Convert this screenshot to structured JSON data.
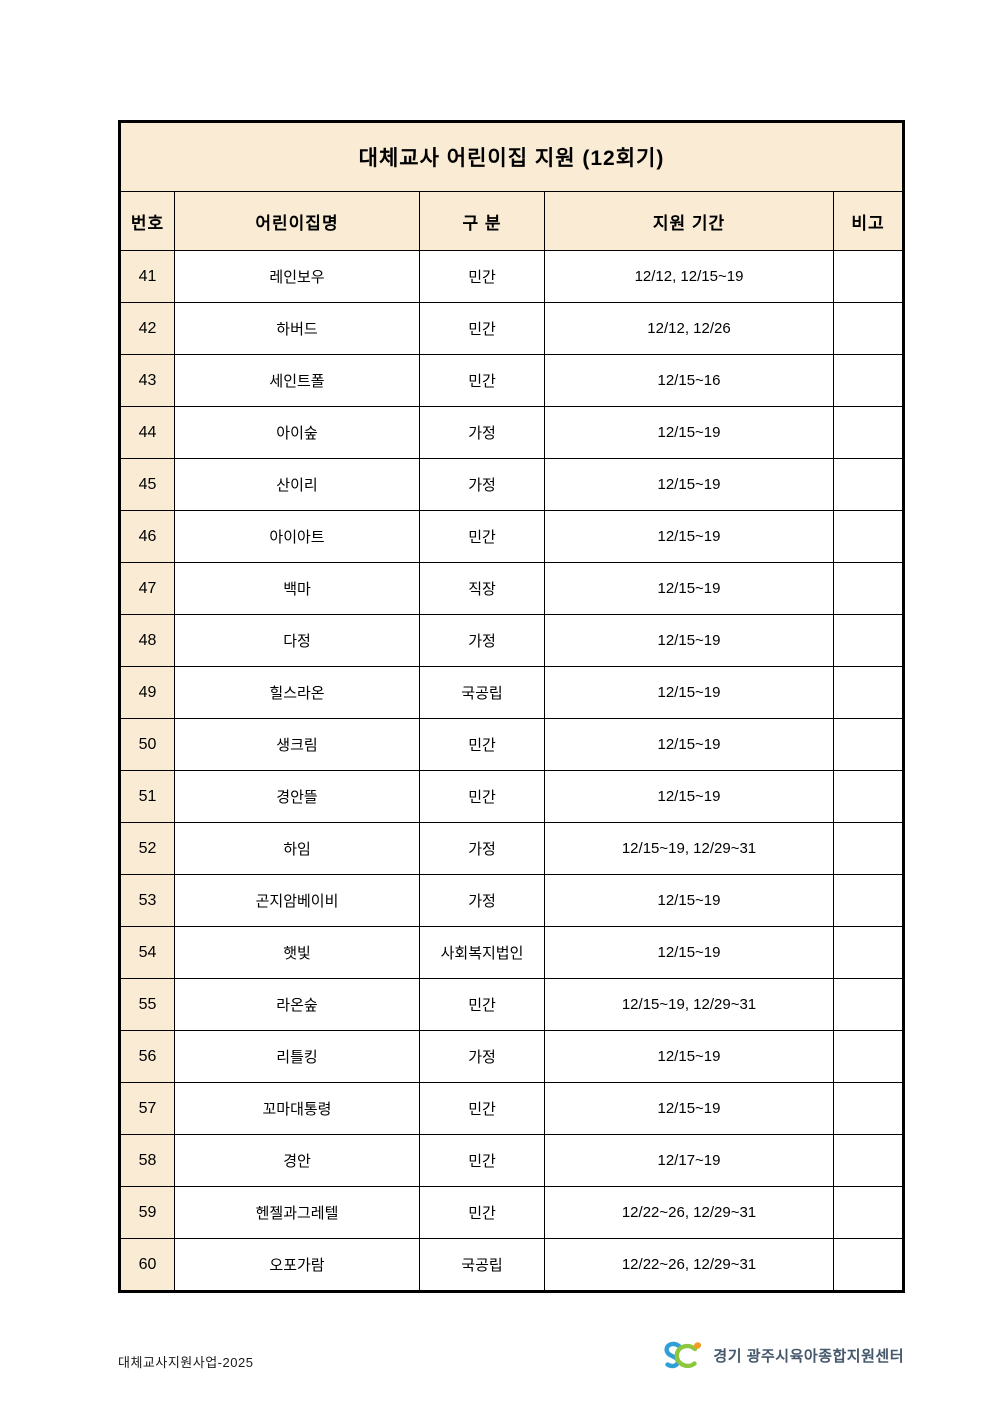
{
  "title": "대체교사 어린이집 지원 (12회기)",
  "table": {
    "columns": [
      "번호",
      "어린이집명",
      "구 분",
      "지원 기간",
      "비고"
    ],
    "rows": [
      {
        "no": "41",
        "name": "레인보우",
        "type": "민간",
        "period": "12/12, 12/15~19",
        "note": ""
      },
      {
        "no": "42",
        "name": "하버드",
        "type": "민간",
        "period": "12/12, 12/26",
        "note": ""
      },
      {
        "no": "43",
        "name": "세인트폴",
        "type": "민간",
        "period": "12/15~16",
        "note": ""
      },
      {
        "no": "44",
        "name": "아이숲",
        "type": "가정",
        "period": "12/15~19",
        "note": ""
      },
      {
        "no": "45",
        "name": "산이리",
        "type": "가정",
        "period": "12/15~19",
        "note": ""
      },
      {
        "no": "46",
        "name": "아이아트",
        "type": "민간",
        "period": "12/15~19",
        "note": ""
      },
      {
        "no": "47",
        "name": "백마",
        "type": "직장",
        "period": "12/15~19",
        "note": ""
      },
      {
        "no": "48",
        "name": "다정",
        "type": "가정",
        "period": "12/15~19",
        "note": ""
      },
      {
        "no": "49",
        "name": "힐스라온",
        "type": "국공립",
        "period": "12/15~19",
        "note": ""
      },
      {
        "no": "50",
        "name": "생크림",
        "type": "민간",
        "period": "12/15~19",
        "note": ""
      },
      {
        "no": "51",
        "name": "경안뜰",
        "type": "민간",
        "period": "12/15~19",
        "note": ""
      },
      {
        "no": "52",
        "name": "하임",
        "type": "가정",
        "period": "12/15~19, 12/29~31",
        "note": ""
      },
      {
        "no": "53",
        "name": "곤지암베이비",
        "type": "가정",
        "period": "12/15~19",
        "note": ""
      },
      {
        "no": "54",
        "name": "햇빛",
        "type": "사회복지법인",
        "period": "12/15~19",
        "note": ""
      },
      {
        "no": "55",
        "name": "라온숲",
        "type": "민간",
        "period": "12/15~19, 12/29~31",
        "note": ""
      },
      {
        "no": "56",
        "name": "리틀킹",
        "type": "가정",
        "period": "12/15~19",
        "note": ""
      },
      {
        "no": "57",
        "name": "꼬마대통령",
        "type": "민간",
        "period": "12/15~19",
        "note": ""
      },
      {
        "no": "58",
        "name": "경안",
        "type": "민간",
        "period": "12/17~19",
        "note": ""
      },
      {
        "no": "59",
        "name": "헨젤과그레텔",
        "type": "민간",
        "period": "12/22~26, 12/29~31",
        "note": ""
      },
      {
        "no": "60",
        "name": "오포가람",
        "type": "국공립",
        "period": "12/22~26, 12/29~31",
        "note": ""
      }
    ]
  },
  "footer": {
    "left": "대체교사지원사업-2025",
    "org": "경기 광주시육아종합지원센터"
  },
  "icons": {
    "logo": "sci-swirl-logo"
  },
  "colors": {
    "cell_fill": "#faecd4",
    "border": "#000000",
    "org_text": "#44576b",
    "logo_blue": "#2f9fd6",
    "logo_green": "#8cc73e",
    "logo_orange": "#f59a23"
  }
}
